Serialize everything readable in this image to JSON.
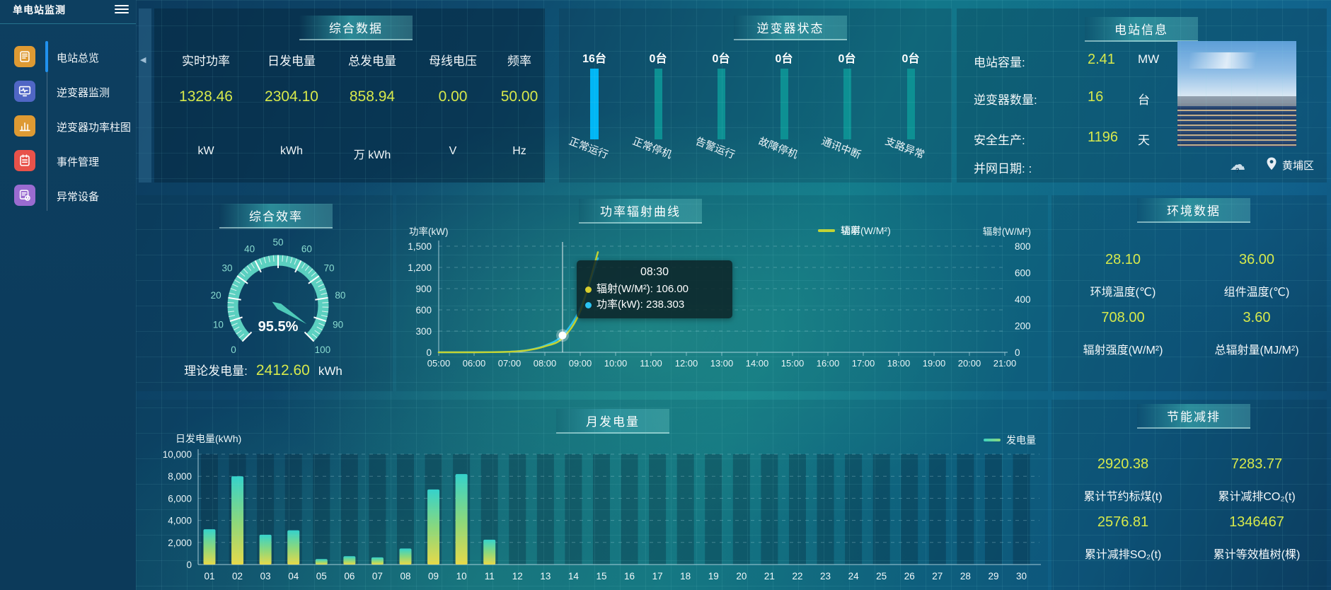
{
  "app": {
    "title": "单电站监测"
  },
  "sidebar": {
    "items": [
      {
        "label": "电站总览",
        "icon": "book-icon",
        "color": "#de9a33",
        "active": true
      },
      {
        "label": "逆变器监测",
        "icon": "monitor-icon",
        "color": "#5066c5",
        "active": false
      },
      {
        "label": "逆变器功率柱图",
        "icon": "bar-chart-icon",
        "color": "#de9a33",
        "active": false
      },
      {
        "label": "事件管理",
        "icon": "notebook-icon",
        "color": "#e8524a",
        "active": false
      },
      {
        "label": "异常设备",
        "icon": "device-alert-icon",
        "color": "#9a6bd0",
        "active": false
      }
    ]
  },
  "summary": {
    "title": "综合数据",
    "metrics": [
      {
        "label": "实时功率",
        "value": "1328.46",
        "unit": "kW"
      },
      {
        "label": "日发电量",
        "value": "2304.10",
        "unit": "kWh"
      },
      {
        "label": "总发电量",
        "value": "858.94",
        "unit": "万 kWh"
      },
      {
        "label": "母线电压",
        "value": "0.00",
        "unit": "V"
      },
      {
        "label": "频率",
        "value": "50.00",
        "unit": "Hz"
      }
    ]
  },
  "inverter_status": {
    "title": "逆变器状态",
    "items": [
      {
        "count": "16台",
        "label": "正常运行",
        "highlight": true
      },
      {
        "count": "0台",
        "label": "正常停机",
        "highlight": false
      },
      {
        "count": "0台",
        "label": "告警运行",
        "highlight": false
      },
      {
        "count": "0台",
        "label": "故障停机",
        "highlight": false
      },
      {
        "count": "0台",
        "label": "通讯中断",
        "highlight": false
      },
      {
        "count": "0台",
        "label": "支路异常",
        "highlight": false
      }
    ]
  },
  "station_info": {
    "title": "电站信息",
    "rows": [
      {
        "label": "电站容量:",
        "value": "2.41",
        "unit": "MW"
      },
      {
        "label": "逆变器数量:",
        "value": "16",
        "unit": "台"
      },
      {
        "label": "安全生产:",
        "value": "1196",
        "unit": "天"
      },
      {
        "label": "并网日期: :",
        "value": "",
        "unit": ""
      }
    ],
    "district": "黄埔区"
  },
  "efficiency": {
    "title": "综合效率",
    "gauge_display": "95.5%",
    "theory_label": "理论发电量:",
    "theory_value": "2412.60",
    "theory_unit": "kWh"
  },
  "power_curve": {
    "title": "功率辐射曲线",
    "y_left_name": "功率(kW)",
    "y_right_name": "辐射(W/M²)",
    "legend": [
      {
        "name": "功率",
        "color": "#2ac3f2"
      },
      {
        "name": "辐射(W/M²)",
        "color": "#c3d332"
      }
    ],
    "tooltip": {
      "time": "08:30",
      "rows": [
        {
          "color": "#d8cf2e",
          "text": "辐射(W/M²): 106.00"
        },
        {
          "color": "#2ac3f2",
          "text": "功率(kW): 238.303"
        }
      ]
    }
  },
  "env_data": {
    "title": "环境数据",
    "metrics": [
      {
        "value": "28.10",
        "label": "环境温度(℃)"
      },
      {
        "value": "36.00",
        "label": "组件温度(℃)"
      },
      {
        "value": "708.00",
        "label": "辐射强度(W/M²)"
      },
      {
        "value": "3.60",
        "label": "总辐射量(MJ/M²)"
      }
    ]
  },
  "monthly": {
    "title": "月发电量",
    "y_name": "日发电量(kWh)",
    "legend": "发电量"
  },
  "energy_saving": {
    "title": "节能减排",
    "metrics": [
      {
        "value": "2920.38",
        "label": "累计节约标煤(t)"
      },
      {
        "value": "7283.77",
        "label": "累计减排CO₂(t)"
      },
      {
        "value": "2576.81",
        "label": "累计减排SO₂(t)"
      },
      {
        "value": "1346467",
        "label": "累计等效植树(棵)"
      }
    ]
  },
  "chart_data": [
    {
      "id": "inverter-status",
      "type": "bar",
      "title": "逆变器状态",
      "categories": [
        "正常运行",
        "正常停机",
        "告警运行",
        "故障停机",
        "通讯中断",
        "支路异常"
      ],
      "values": [
        16,
        0,
        0,
        0,
        0,
        0
      ],
      "unit": "台",
      "colors": {
        "active": "#01b6f5",
        "zero": "#0d9093"
      }
    },
    {
      "id": "efficiency-gauge",
      "type": "gauge",
      "min": 0,
      "max": 100,
      "value": 95.5,
      "display": "95.5%",
      "tick_labels": [
        "0",
        "10",
        "20",
        "30",
        "40",
        "50",
        "60",
        "70",
        "80",
        "90",
        "100"
      ],
      "arc_color": "#5bd0c0"
    },
    {
      "id": "power-radiation",
      "type": "line",
      "title": "功率辐射曲线",
      "x": [
        "05:00",
        "05:30",
        "06:00",
        "06:30",
        "07:00",
        "07:30",
        "08:00",
        "08:30",
        "09:00",
        "09:30",
        "10:00",
        "10:30",
        "11:00",
        "11:30",
        "12:00",
        "12:30",
        "13:00",
        "13:30",
        "14:00",
        "14:30",
        "15:00",
        "15:30",
        "16:00",
        "16:30",
        "17:00",
        "17:30",
        "18:00",
        "18:30",
        "19:00",
        "19:30",
        "20:00",
        "20:30",
        "21:00"
      ],
      "series": [
        {
          "name": "功率",
          "axis": "left",
          "color": "#2ac3f2",
          "values": [
            0,
            0,
            1,
            3,
            8,
            30,
            95,
            238.303,
            620,
            1330,
            null,
            null,
            null,
            null,
            null,
            null,
            null,
            null,
            null,
            null,
            null,
            null,
            null,
            null,
            null,
            null,
            null,
            null,
            null,
            null,
            null,
            null,
            null
          ]
        },
        {
          "name": "辐射(W/M²)",
          "axis": "right",
          "color": "#c3d332",
          "values": [
            0,
            0,
            0,
            1,
            4,
            15,
            45,
            106,
            310,
            755,
            null,
            null,
            null,
            null,
            null,
            null,
            null,
            null,
            null,
            null,
            null,
            null,
            null,
            null,
            null,
            null,
            null,
            null,
            null,
            null,
            null,
            null,
            null
          ]
        }
      ],
      "y_left": {
        "min": 0,
        "max": 1500,
        "ticks": [
          "0",
          "300",
          "600",
          "900",
          "1,200",
          "1,500"
        ]
      },
      "y_right": {
        "min": 0,
        "max": 800,
        "ticks": [
          "0",
          "200",
          "400",
          "600",
          "800"
        ]
      },
      "highlight_index": 7,
      "legend_position": "top-right"
    },
    {
      "id": "monthly-energy",
      "type": "bar",
      "title": "月发电量",
      "categories": [
        "01",
        "02",
        "03",
        "04",
        "05",
        "06",
        "07",
        "08",
        "09",
        "10",
        "11",
        "12",
        "13",
        "14",
        "15",
        "16",
        "17",
        "18",
        "19",
        "20",
        "21",
        "22",
        "23",
        "24",
        "25",
        "26",
        "27",
        "28",
        "29",
        "30"
      ],
      "values": [
        3200,
        8000,
        2700,
        3100,
        500,
        750,
        650,
        1450,
        6800,
        8200,
        2250,
        0,
        0,
        0,
        0,
        0,
        0,
        0,
        0,
        0,
        0,
        0,
        0,
        0,
        0,
        0,
        0,
        0,
        0,
        0
      ],
      "ylim": [
        0,
        10000
      ],
      "y_ticks": [
        "0",
        "2,000",
        "4,000",
        "6,000",
        "8,000",
        "10,000"
      ],
      "legend": "发电量",
      "bar_gradient": [
        "#35d2cb",
        "#8cd87b",
        "#e6d94a"
      ]
    }
  ]
}
